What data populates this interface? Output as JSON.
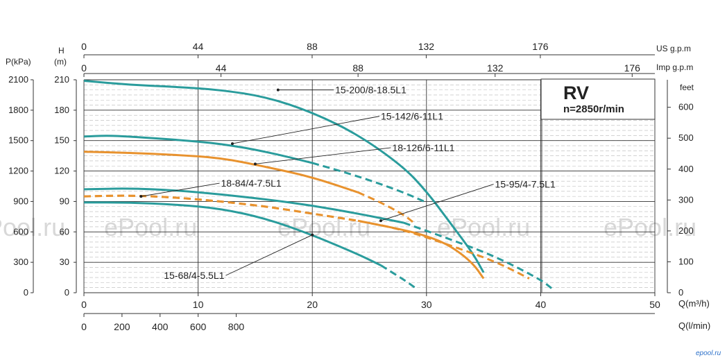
{
  "colors": {
    "teal": "#2a9c9c",
    "orange": "#e8922e",
    "grid": "#333333",
    "minor_grid": "#b8b8b8",
    "watermark": "#d8d8d8"
  },
  "watermark": "ePool.ru",
  "corner_logo": "epool.ru",
  "chart_data": {
    "type": "line",
    "title": "RV",
    "subtitle": "n=2850r/min",
    "xlabel": "Q(m³/h)",
    "x2label": "Q(l/min)",
    "x_top_label_us": "US g.p.m",
    "x_top_label_imp": "Imp g.p.m",
    "ylabel_left_kpa": "P(kPa)",
    "ylabel_left_m_top": "H",
    "ylabel_left_m_bottom": "(m)",
    "ylabel_right": "feet",
    "xlim": [
      0,
      50
    ],
    "ylim": [
      0,
      210
    ],
    "grid": true,
    "x_ticks": [
      "0",
      "10",
      "20",
      "30",
      "40",
      "50"
    ],
    "x2_ticks": [
      "0",
      "200",
      "400",
      "600",
      "800"
    ],
    "us_ticks": [
      "0",
      "44",
      "88",
      "132",
      "176"
    ],
    "imp_ticks": [
      "0",
      "44",
      "88",
      "132",
      "176"
    ],
    "y_ticks_m": [
      "210",
      "180",
      "150",
      "120",
      "90",
      "60",
      "30",
      "0"
    ],
    "y_ticks_kpa": [
      "2100",
      "1800",
      "1500",
      "1200",
      "900",
      "600",
      "300",
      "0"
    ],
    "y_ticks_feet": [
      "600",
      "500",
      "400",
      "300",
      "200",
      "100",
      "0"
    ],
    "series": [
      {
        "name": "15-200/8-18.5L1",
        "color": "teal",
        "label_at": [
          17,
          200
        ],
        "label_pos": [
          22,
          200
        ],
        "solid": [
          [
            0,
            209
          ],
          [
            4,
            205
          ],
          [
            8,
            203
          ],
          [
            12,
            200
          ],
          [
            16,
            193
          ],
          [
            20,
            178
          ],
          [
            24,
            156
          ],
          [
            28,
            124
          ],
          [
            30,
            100
          ],
          [
            32,
            70
          ],
          [
            34,
            40
          ],
          [
            35,
            20
          ]
        ],
        "dashed": []
      },
      {
        "name": "15-142/6-11L1",
        "color": "teal",
        "label_at": [
          13,
          147
        ],
        "label_pos": [
          26,
          174
        ],
        "solid": [
          [
            0,
            154
          ],
          [
            2,
            155
          ],
          [
            4,
            154
          ],
          [
            8,
            151
          ],
          [
            12,
            147
          ],
          [
            16,
            139
          ],
          [
            20,
            128
          ]
        ],
        "dashed": [
          [
            20,
            128
          ],
          [
            24,
            115
          ],
          [
            28,
            99
          ],
          [
            30,
            89
          ]
        ]
      },
      {
        "name": "18-126/6-11L1",
        "color": "orange",
        "label_at": [
          15,
          127
        ],
        "label_pos": [
          27,
          143
        ],
        "solid": [
          [
            0,
            139
          ],
          [
            4,
            138
          ],
          [
            8,
            136
          ],
          [
            12,
            133
          ],
          [
            16,
            124
          ],
          [
            20,
            114
          ],
          [
            24,
            99
          ]
        ],
        "dashed": [
          [
            24,
            99
          ],
          [
            26,
            89
          ],
          [
            28,
            77
          ],
          [
            29,
            68
          ]
        ]
      },
      {
        "name": "18-84/4-7.5L1",
        "color": "orange",
        "label_at": [
          5,
          95
        ],
        "label_pos": [
          12,
          108
        ],
        "solid": [
          [
            0,
            95
          ],
          [
            4,
            96
          ],
          [
            8,
            94
          ],
          [
            12,
            90
          ],
          [
            16,
            85
          ],
          [
            20,
            78
          ],
          [
            24,
            71
          ],
          [
            28,
            62
          ],
          [
            30,
            56
          ],
          [
            32,
            47
          ],
          [
            34,
            30
          ],
          [
            35,
            14
          ]
        ],
        "dashed": [
          [
            0,
            95
          ],
          [
            4,
            96
          ],
          [
            8,
            94
          ],
          [
            12,
            90
          ],
          [
            16,
            85
          ],
          [
            20,
            78
          ],
          [
            24,
            71
          ],
          [
            28,
            62
          ],
          [
            32,
            47
          ],
          [
            36,
            31
          ],
          [
            39,
            14
          ]
        ]
      },
      {
        "name": "15-95/4-7.5L1",
        "color": "teal",
        "label_at": [
          26,
          71
        ],
        "label_pos": [
          36,
          107
        ],
        "solid": [
          [
            0,
            102
          ],
          [
            4,
            103
          ],
          [
            8,
            101
          ],
          [
            12,
            97
          ],
          [
            16,
            92
          ],
          [
            20,
            86
          ],
          [
            24,
            78
          ],
          [
            28,
            69
          ]
        ],
        "dashed": [
          [
            28,
            69
          ],
          [
            32,
            53
          ],
          [
            36,
            36
          ],
          [
            40,
            13
          ],
          [
            41,
            4
          ]
        ]
      },
      {
        "name": "15-68/4-5.5L1",
        "color": "teal",
        "label_at": [
          20,
          57
        ],
        "label_pos": [
          7,
          17
        ],
        "solid": [
          [
            0,
            89
          ],
          [
            4,
            89
          ],
          [
            8,
            87
          ],
          [
            12,
            83
          ],
          [
            16,
            73
          ],
          [
            20,
            57
          ],
          [
            24,
            38
          ],
          [
            26,
            27
          ]
        ],
        "dashed": [
          [
            26,
            27
          ],
          [
            28,
            13
          ],
          [
            29,
            5
          ]
        ]
      }
    ]
  }
}
